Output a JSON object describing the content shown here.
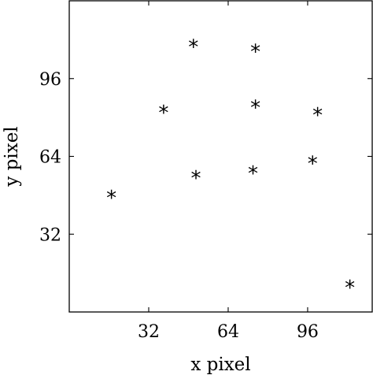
{
  "chart_data": {
    "type": "scatter",
    "xlabel": "x pixel",
    "ylabel": "y pixel",
    "xlim": [
      0,
      122
    ],
    "ylim": [
      0,
      128
    ],
    "xticks": [
      32,
      64,
      96
    ],
    "yticks": [
      32,
      64,
      96
    ],
    "grid": false,
    "marker": "*",
    "points": [
      {
        "x": 17,
        "y": 48
      },
      {
        "x": 38,
        "y": 83
      },
      {
        "x": 50,
        "y": 110
      },
      {
        "x": 51,
        "y": 56
      },
      {
        "x": 74,
        "y": 58
      },
      {
        "x": 75,
        "y": 85
      },
      {
        "x": 75,
        "y": 108
      },
      {
        "x": 98,
        "y": 62
      },
      {
        "x": 100,
        "y": 82
      },
      {
        "x": 113,
        "y": 11
      }
    ]
  }
}
